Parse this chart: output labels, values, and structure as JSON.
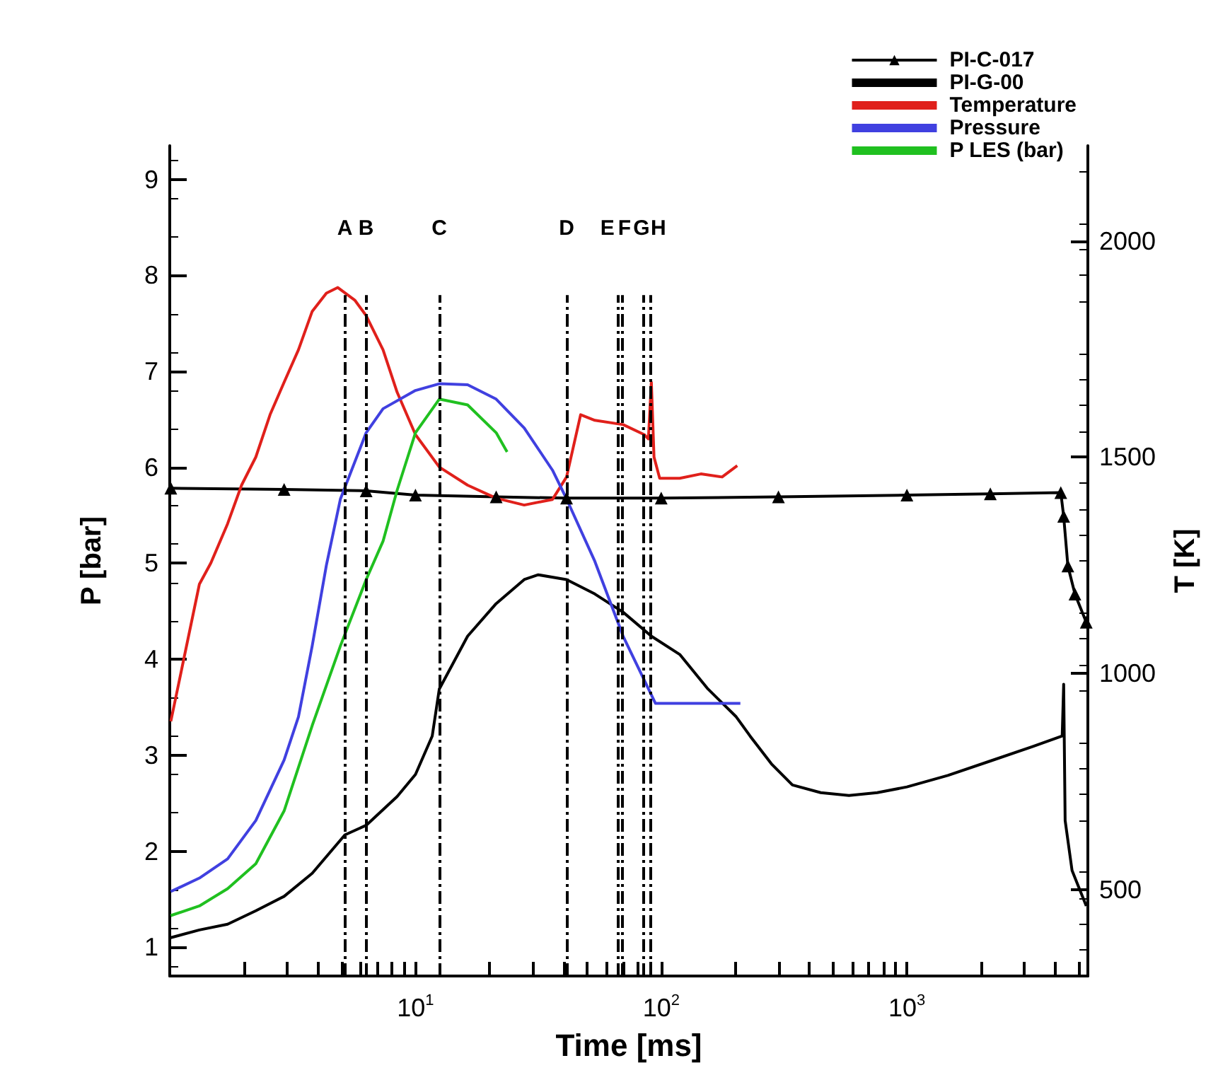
{
  "chart_data": {
    "type": "line",
    "xlabel": "Time [ms]",
    "ylabel": "P [bar]",
    "y2label": "T [K]",
    "log": "x",
    "grid": false,
    "legend": "top right",
    "xlim": [
      1,
      5450
    ],
    "ylim": [
      0.7,
      9.35
    ],
    "y2lim": [
      300,
      2220
    ],
    "xticks": [
      {
        "value": 2,
        "label": null
      },
      {
        "value": 3,
        "label": null
      },
      {
        "value": 4,
        "label": null
      },
      {
        "value": 5,
        "label": null
      },
      {
        "value": 6,
        "label": null
      },
      {
        "value": 7,
        "label": null
      },
      {
        "value": 8,
        "label": null
      },
      {
        "value": 9,
        "label": null
      },
      {
        "value": 10,
        "label": "10$^{1}$"
      },
      {
        "value": 20,
        "label": null
      },
      {
        "value": 30,
        "label": null
      },
      {
        "value": 40,
        "label": null
      },
      {
        "value": 50,
        "label": null
      },
      {
        "value": 60,
        "label": null
      },
      {
        "value": 70,
        "label": null
      },
      {
        "value": 80,
        "label": null
      },
      {
        "value": 90,
        "label": null
      },
      {
        "value": 100,
        "label": "10$^{2}$"
      },
      {
        "value": 200,
        "label": null
      },
      {
        "value": 300,
        "label": null
      },
      {
        "value": 400,
        "label": null
      },
      {
        "value": 500,
        "label": null
      },
      {
        "value": 600,
        "label": null
      },
      {
        "value": 700,
        "label": null
      },
      {
        "value": 800,
        "label": null
      },
      {
        "value": 900,
        "label": null
      },
      {
        "value": 1000,
        "label": "10$^{3}$"
      },
      {
        "value": 2000,
        "label": null
      },
      {
        "value": 3000,
        "label": null
      },
      {
        "value": 4000,
        "label": null
      },
      {
        "value": 5000,
        "label": null
      }
    ],
    "yticks": [
      1,
      2,
      3,
      4,
      5,
      6,
      7,
      8,
      9
    ],
    "y2ticks": [
      500,
      1000,
      1500,
      2000
    ],
    "series": [
      {
        "name": "PI-C-017",
        "color": "#000000",
        "axis": "y2",
        "marker": "triangle",
        "x": [
          1.01,
          2.92,
          6.3,
          10,
          21.3,
          41.2,
          100,
          300,
          1000,
          2185,
          4230,
          4345,
          4520,
          4830,
          5370
        ],
        "values": [
          1428,
          1425,
          1422,
          1412,
          1408,
          1405,
          1405,
          1408,
          1412,
          1415,
          1418,
          1363,
          1248,
          1183,
          1118
        ]
      },
      {
        "name": "PI-G-00",
        "color": "#000000",
        "marker": "none",
        "x": [
          1.01,
          1.32,
          1.72,
          2.24,
          2.92,
          3.8,
          5.16,
          6.3,
          8.42,
          10,
          11.7,
          12.5,
          16.3,
          21.3,
          27.7,
          31.6,
          41.2,
          53.7,
          70,
          91.2,
          119,
          155,
          202,
          230,
          281,
          342,
          446,
          581,
          757,
          1000,
          1468,
          2185,
          3245,
          4285,
          4345,
          4405,
          4700,
          5370
        ],
        "values": [
          1.1,
          1.18,
          1.24,
          1.38,
          1.53,
          1.77,
          2.17,
          2.27,
          2.57,
          2.8,
          3.2,
          3.69,
          4.24,
          4.58,
          4.83,
          4.88,
          4.83,
          4.68,
          4.49,
          4.24,
          4.05,
          3.69,
          3.4,
          3.2,
          2.91,
          2.69,
          2.61,
          2.58,
          2.61,
          2.67,
          2.79,
          2.94,
          3.09,
          3.2,
          3.74,
          2.32,
          1.8,
          1.43
        ]
      },
      {
        "name": "Temperature",
        "color": "#e0201b",
        "axis": "y2",
        "marker": "none",
        "x": [
          1.01,
          1.32,
          1.47,
          1.72,
          1.96,
          2.24,
          2.56,
          2.92,
          3.34,
          3.8,
          4.34,
          4.83,
          5.66,
          6.3,
          7.38,
          8.42,
          10,
          12.5,
          16.3,
          21.3,
          27.7,
          36.1,
          41.2,
          47,
          53.7,
          70,
          85.3,
          88.7,
          91.2,
          93.5,
          98.6,
          119,
          145,
          177,
          204
        ],
        "values": [
          889,
          1206,
          1255,
          1346,
          1435,
          1500,
          1598,
          1673,
          1748,
          1837,
          1879,
          1892,
          1863,
          1827,
          1748,
          1650,
          1552,
          1477,
          1435,
          1405,
          1389,
          1402,
          1454,
          1598,
          1585,
          1575,
          1552,
          1542,
          1673,
          1500,
          1451,
          1451,
          1461,
          1454,
          1480
        ]
      },
      {
        "name": "Pressure",
        "color": "#4040e0",
        "marker": "none",
        "x": [
          1.01,
          1.32,
          1.72,
          2.24,
          2.92,
          3.34,
          3.8,
          4.34,
          4.95,
          6.3,
          7.38,
          10,
          12.5,
          16.3,
          21.3,
          27.7,
          36.1,
          41.2,
          53.7,
          70,
          94.8,
          210
        ],
        "values": [
          1.58,
          1.72,
          1.92,
          2.32,
          2.95,
          3.4,
          4.14,
          4.98,
          5.67,
          6.36,
          6.61,
          6.8,
          6.87,
          6.86,
          6.71,
          6.41,
          5.97,
          5.67,
          5.02,
          4.24,
          3.54,
          3.54
        ]
      },
      {
        "name": "P LES (bar)",
        "color": "#20c020",
        "marker": "none",
        "x": [
          1.01,
          1.32,
          1.72,
          2.24,
          2.92,
          3.8,
          4.95,
          6.3,
          7.38,
          8.42,
          10,
          12.5,
          16.3,
          21.3,
          23.6
        ],
        "values": [
          1.33,
          1.43,
          1.61,
          1.87,
          2.42,
          3.31,
          4.14,
          4.83,
          5.23,
          5.76,
          6.36,
          6.71,
          6.65,
          6.36,
          6.16
        ]
      }
    ],
    "ref_lines": [
      {
        "axis": "x",
        "value": 5.16,
        "label": "A",
        "color": "#000000",
        "line_style": "dashed"
      },
      {
        "axis": "x",
        "value": 6.3,
        "label": "B",
        "color": "#000000",
        "line_style": "dashed"
      },
      {
        "axis": "x",
        "value": 12.5,
        "label": "C",
        "color": "#000000",
        "line_style": "dashed"
      },
      {
        "axis": "x",
        "value": 41.2,
        "label": "D",
        "color": "#000000",
        "line_style": "dashed"
      },
      {
        "axis": "x",
        "value": 66.4,
        "label": "E",
        "color": "#000000",
        "line_style": "dashed"
      },
      {
        "axis": "x",
        "value": 69,
        "label": "F",
        "color": "#000000",
        "line_style": "dashed"
      },
      {
        "axis": "x",
        "value": 84.2,
        "label": "G",
        "color": "#000000",
        "line_style": "dashed"
      },
      {
        "axis": "x",
        "value": 89.9,
        "label": "H",
        "color": "#000000",
        "line_style": "dashed"
      }
    ]
  }
}
